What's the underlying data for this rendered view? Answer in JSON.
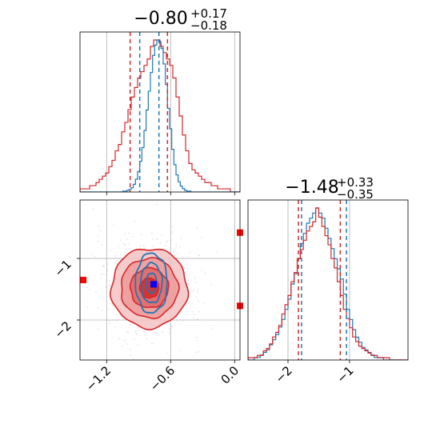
{
  "chart_data": {
    "type": "corner",
    "colors": {
      "red": "#d62728",
      "blue": "#1f77b4",
      "truth_blue": "#0000ff",
      "truth_red": "#ff0000"
    },
    "grid": true,
    "parameters": [
      {
        "id": "p1",
        "title": {
          "main": "−0.80",
          "sup": "+0.17",
          "sub": "−0.18"
        },
        "range": [
          -1.45,
          0.05
        ],
        "ticks": [
          -1.2,
          -0.6,
          0.0
        ],
        "tick_labels": [
          "−1.2",
          "−0.6",
          "0.0"
        ],
        "quantiles": {
          "red": [
            -0.98,
            -0.63
          ],
          "blue": [
            -0.89,
            -0.71
          ]
        },
        "hist_red": {
          "edges_start": -1.45,
          "bin": 0.03,
          "counts": [
            1,
            1,
            1,
            2,
            2,
            3,
            4,
            5,
            6,
            8,
            10,
            13,
            15,
            19,
            22,
            26,
            30,
            33,
            36,
            38,
            40,
            42,
            46,
            48,
            48,
            46,
            44,
            42,
            40,
            36,
            30,
            24,
            18,
            13,
            9,
            7,
            6,
            5,
            4,
            3,
            3,
            2,
            2,
            1,
            1,
            1,
            1,
            0,
            0,
            0
          ]
        },
        "hist_blue": {
          "edges_start": -1.45,
          "bin": 0.02,
          "counts": [
            0,
            0,
            0,
            0,
            0,
            0,
            0,
            0,
            0,
            0,
            0,
            0,
            0,
            0,
            0,
            0,
            0,
            0,
            0,
            0,
            1,
            1,
            2,
            3,
            5,
            9,
            15,
            24,
            36,
            52,
            72,
            96,
            118,
            140,
            160,
            172,
            178,
            176,
            168,
            150,
            126,
            98,
            74,
            50,
            32,
            20,
            12,
            7,
            4,
            2,
            1,
            1,
            0,
            0,
            0,
            0,
            0,
            0,
            0,
            0,
            0,
            0,
            0,
            0,
            0,
            0,
            0,
            0,
            0,
            0,
            0,
            0,
            0,
            0,
            0
          ]
        }
      },
      {
        "id": "p2",
        "title": {
          "main": "−1.48",
          "sup": "+0.33",
          "sub": "−0.35"
        },
        "range": [
          -2.65,
          -0.05
        ],
        "ticks": [
          -2,
          -1
        ],
        "tick_labels": [
          "−2",
          "−1"
        ],
        "quantiles": {
          "red": [
            -1.83,
            -1.15
          ],
          "blue": [
            -1.78,
            -1.05
          ]
        },
        "hist_red": {
          "edges_start": -2.65,
          "bin": 0.05,
          "counts": [
            1,
            1,
            1,
            2,
            2,
            4,
            5,
            7,
            10,
            12,
            15,
            20,
            24,
            28,
            34,
            38,
            44,
            48,
            52,
            56,
            58,
            60,
            66,
            62,
            58,
            54,
            50,
            44,
            40,
            34,
            28,
            22,
            18,
            14,
            10,
            8,
            6,
            5,
            4,
            3,
            2,
            2,
            1,
            1,
            1,
            1,
            0,
            0,
            0,
            0,
            0,
            0
          ]
        },
        "hist_blue": {
          "edges_start": -2.65,
          "bin": 0.05,
          "counts": [
            0,
            0,
            1,
            1,
            2,
            3,
            4,
            6,
            8,
            10,
            13,
            16,
            20,
            24,
            30,
            34,
            40,
            46,
            50,
            54,
            56,
            58,
            60,
            58,
            56,
            52,
            48,
            44,
            40,
            36,
            32,
            26,
            20,
            16,
            12,
            9,
            7,
            5,
            4,
            3,
            2,
            1,
            1,
            1,
            0,
            0,
            0,
            0,
            0,
            0,
            0,
            0
          ]
        }
      }
    ],
    "contours": {
      "red_center": [
        -0.8,
        -1.48
      ],
      "blue_center": [
        -0.78,
        -1.4
      ],
      "red_levels_sigma": [
        0.5,
        1.0,
        1.5,
        2.0
      ],
      "blue_levels_sigma": [
        0.5,
        1.0,
        1.5
      ],
      "red_sigma": [
        0.17,
        0.34
      ],
      "blue_sigma": [
        0.09,
        0.36
      ]
    },
    "truth_markers": [
      {
        "color": "blue",
        "x": -0.76,
        "y": -1.42
      },
      {
        "color": "red",
        "x": -1.42,
        "y": -1.35
      },
      {
        "color": "red",
        "x": 0.05,
        "y": -0.58
      },
      {
        "color": "red",
        "x": 0.05,
        "y": -1.77
      }
    ]
  }
}
